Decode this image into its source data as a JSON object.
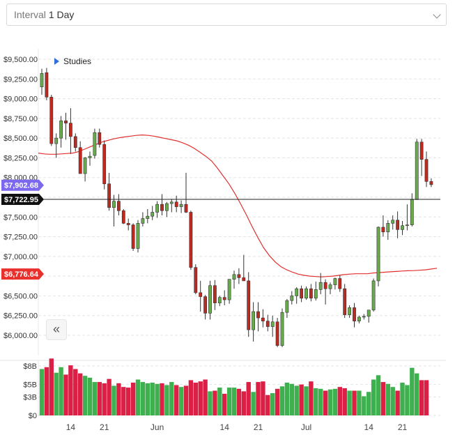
{
  "header": {
    "interval_label": "Interval",
    "interval_value": "1 Day"
  },
  "studies_label": "Studies",
  "price_labels": {
    "sma": {
      "text": "$7,902.68",
      "value": 7902.68,
      "color": "#7b68ee"
    },
    "current": {
      "text": "$7,722.95",
      "value": 7722.95,
      "color": "#111111"
    },
    "low": {
      "text": "$6,776.64",
      "value": 6776.64,
      "color": "#e8302d"
    }
  },
  "colors": {
    "up": "#6aaa4e",
    "down": "#c1281e",
    "sma": "#e0302e",
    "vol_up": "#3fb04f",
    "vol_down": "#dc1f45"
  },
  "chart_data": {
    "type": "candlestick",
    "y_ticks": [
      "$6,000.00",
      "$6,250.00",
      "$6,500.00",
      "$6,750.00",
      "$7,000.00",
      "$7,250.00",
      "$7,500.00",
      "$7,750.00",
      "$8,000.00",
      "$8,250.00",
      "$8,500.00",
      "$8,750.00",
      "$9,000.00",
      "$9,250.00",
      "$9,500.00"
    ],
    "y_tick_values": [
      6000,
      6250,
      6500,
      6750,
      7000,
      7250,
      7500,
      7750,
      8000,
      8250,
      8500,
      8750,
      9000,
      9250,
      9500
    ],
    "ylim": [
      5800,
      9600
    ],
    "x_tick_labels": [
      {
        "label": "14",
        "index": 6
      },
      {
        "label": "21",
        "index": 13
      },
      {
        "label": "Jun",
        "index": 24
      },
      {
        "label": "14",
        "index": 38
      },
      {
        "label": "21",
        "index": 45
      },
      {
        "label": "Jul",
        "index": 55
      },
      {
        "label": "14",
        "index": 68
      },
      {
        "label": "21",
        "index": 75
      }
    ],
    "vol_ticks": [
      "$8B",
      "$5B",
      "$3B",
      "$0"
    ],
    "vol_tick_values": [
      8,
      5,
      3,
      0
    ],
    "vol_ylim": [
      0,
      9.5
    ],
    "ohlc": [
      [
        9150,
        9380,
        9050,
        9320
      ],
      [
        9330,
        9390,
        8980,
        9020
      ],
      [
        9020,
        9050,
        8400,
        8430
      ],
      [
        8430,
        8560,
        8250,
        8500
      ],
      [
        8500,
        8780,
        8380,
        8720
      ],
      [
        8720,
        8820,
        8480,
        8690
      ],
      [
        8690,
        8880,
        8300,
        8520
      ],
      [
        8520,
        8560,
        8330,
        8380
      ],
      [
        8380,
        8460,
        8050,
        8050
      ],
      [
        8050,
        8260,
        7950,
        8250
      ],
      [
        8250,
        8330,
        8150,
        8270
      ],
      [
        8280,
        8620,
        8240,
        8570
      ],
      [
        8570,
        8620,
        8380,
        8420
      ],
      [
        8420,
        8470,
        7850,
        7920
      ],
      [
        7920,
        8060,
        7580,
        7620
      ],
      [
        7620,
        7780,
        7380,
        7700
      ],
      [
        7700,
        7790,
        7520,
        7580
      ],
      [
        7580,
        7600,
        7410,
        7420
      ],
      [
        7420,
        7480,
        7330,
        7400
      ],
      [
        7400,
        7420,
        7070,
        7100
      ],
      [
        7100,
        7460,
        7050,
        7420
      ],
      [
        7420,
        7560,
        7380,
        7480
      ],
      [
        7480,
        7600,
        7420,
        7510
      ],
      [
        7510,
        7640,
        7460,
        7560
      ],
      [
        7560,
        7700,
        7490,
        7660
      ],
      [
        7660,
        7790,
        7520,
        7580
      ],
      [
        7580,
        7690,
        7500,
        7670
      ],
      [
        7670,
        7730,
        7560,
        7690
      ],
      [
        7690,
        7770,
        7560,
        7630
      ],
      [
        7630,
        7710,
        7550,
        7660
      ],
      [
        7660,
        8060,
        7550,
        7560
      ],
      [
        7560,
        7580,
        6830,
        6860
      ],
      [
        6860,
        6900,
        6520,
        6540
      ],
      [
        6540,
        6690,
        6300,
        6490
      ],
      [
        6490,
        6510,
        6200,
        6280
      ],
      [
        6280,
        6690,
        6200,
        6630
      ],
      [
        6630,
        6700,
        6320,
        6410
      ],
      [
        6410,
        6500,
        6370,
        6480
      ],
      [
        6480,
        6570,
        6380,
        6450
      ],
      [
        6450,
        6710,
        6400,
        6710
      ],
      [
        6710,
        6820,
        6590,
        6770
      ],
      [
        6770,
        6850,
        6650,
        6730
      ],
      [
        6730,
        7020,
        6700,
        6690
      ],
      [
        6690,
        6800,
        5980,
        6070
      ],
      [
        6070,
        6420,
        5920,
        6300
      ],
      [
        6300,
        6420,
        6050,
        6220
      ],
      [
        6220,
        6330,
        6100,
        6180
      ],
      [
        6180,
        6260,
        6050,
        6110
      ],
      [
        6110,
        6250,
        5980,
        6170
      ],
      [
        6170,
        6220,
        5850,
        5870
      ],
      [
        5870,
        6340,
        5850,
        6290
      ],
      [
        6290,
        6460,
        6220,
        6440
      ],
      [
        6440,
        6560,
        6390,
        6500
      ],
      [
        6500,
        6610,
        6400,
        6590
      ],
      [
        6590,
        6630,
        6420,
        6470
      ],
      [
        6470,
        6620,
        6450,
        6590
      ],
      [
        6590,
        6650,
        6430,
        6470
      ],
      [
        6470,
        6680,
        6440,
        6580
      ],
      [
        6580,
        6790,
        6520,
        6670
      ],
      [
        6670,
        6710,
        6390,
        6590
      ],
      [
        6590,
        6670,
        6520,
        6640
      ],
      [
        6640,
        6730,
        6580,
        6720
      ],
      [
        6720,
        6760,
        6550,
        6590
      ],
      [
        6590,
        6650,
        6220,
        6260
      ],
      [
        6260,
        6380,
        6220,
        6350
      ],
      [
        6350,
        6410,
        6100,
        6180
      ],
      [
        6180,
        6250,
        6150,
        6230
      ],
      [
        6230,
        6270,
        6200,
        6240
      ],
      [
        6240,
        6320,
        6160,
        6320
      ],
      [
        6320,
        6720,
        6300,
        6690
      ],
      [
        6690,
        7380,
        6620,
        7370
      ],
      [
        7370,
        7520,
        7250,
        7310
      ],
      [
        7310,
        7460,
        7210,
        7420
      ],
      [
        7420,
        7520,
        7340,
        7460
      ],
      [
        7460,
        7570,
        7230,
        7340
      ],
      [
        7340,
        7450,
        7270,
        7390
      ],
      [
        7390,
        7660,
        7330,
        7400
      ],
      [
        7400,
        7800,
        7380,
        7720
      ],
      [
        7720,
        8490,
        7720,
        8450
      ],
      [
        8450,
        8490,
        8020,
        8230
      ],
      [
        8230,
        8330,
        7880,
        7950
      ],
      [
        7950,
        7990,
        7880,
        7910
      ]
    ],
    "volume": [
      7.5,
      7.8,
      9.2,
      6.9,
      7.8,
      6.6,
      8.1,
      7.5,
      6.8,
      6.4,
      6.1,
      5.4,
      5.4,
      5.2,
      5.9,
      4.8,
      5.2,
      4.6,
      4.5,
      5.3,
      5.8,
      5.4,
      5.2,
      5.3,
      5.1,
      5.2,
      4.9,
      5.4,
      4.9,
      4.6,
      4.8,
      5.7,
      5.3,
      5.5,
      5.8,
      3.9,
      4.0,
      4.5,
      3.5,
      4.5,
      4.5,
      4.3,
      3.9,
      5.4,
      3.8,
      5.4,
      5.5,
      3.3,
      3.6,
      4.3,
      4.7,
      5.3,
      5.1,
      4.8,
      5.0,
      4.7,
      5.5,
      4.4,
      4.3,
      4.0,
      4.2,
      4.3,
      4.6,
      4.4,
      4.0,
      4.0,
      4.0,
      3.1,
      3.8,
      5.8,
      6.5,
      5.4,
      5.1,
      4.6,
      4.0,
      5.3,
      4.9,
      7.7,
      6.8,
      5.7,
      5.7
    ]
  },
  "sma_series": [
    8310,
    8300,
    8295,
    8295,
    8300,
    8305,
    8310,
    8330,
    8360,
    8390,
    8420,
    8450,
    8470,
    8490,
    8505,
    8515,
    8525,
    8535,
    8540,
    8535,
    8525,
    8510,
    8495,
    8480,
    8465,
    8440,
    8410,
    8370,
    8320,
    8270,
    8210,
    8120,
    8020,
    7920,
    7800,
    7670,
    7530,
    7380,
    7240,
    7110,
    7010,
    6930,
    6870,
    6830,
    6800,
    6775,
    6760,
    6750,
    6745,
    6740,
    6745,
    6750,
    6760,
    6770,
    6776,
    6780,
    6780,
    6780,
    6790,
    6795,
    6800,
    6805,
    6810,
    6815,
    6818,
    6820,
    6825,
    6830,
    6840,
    6850
  ]
}
